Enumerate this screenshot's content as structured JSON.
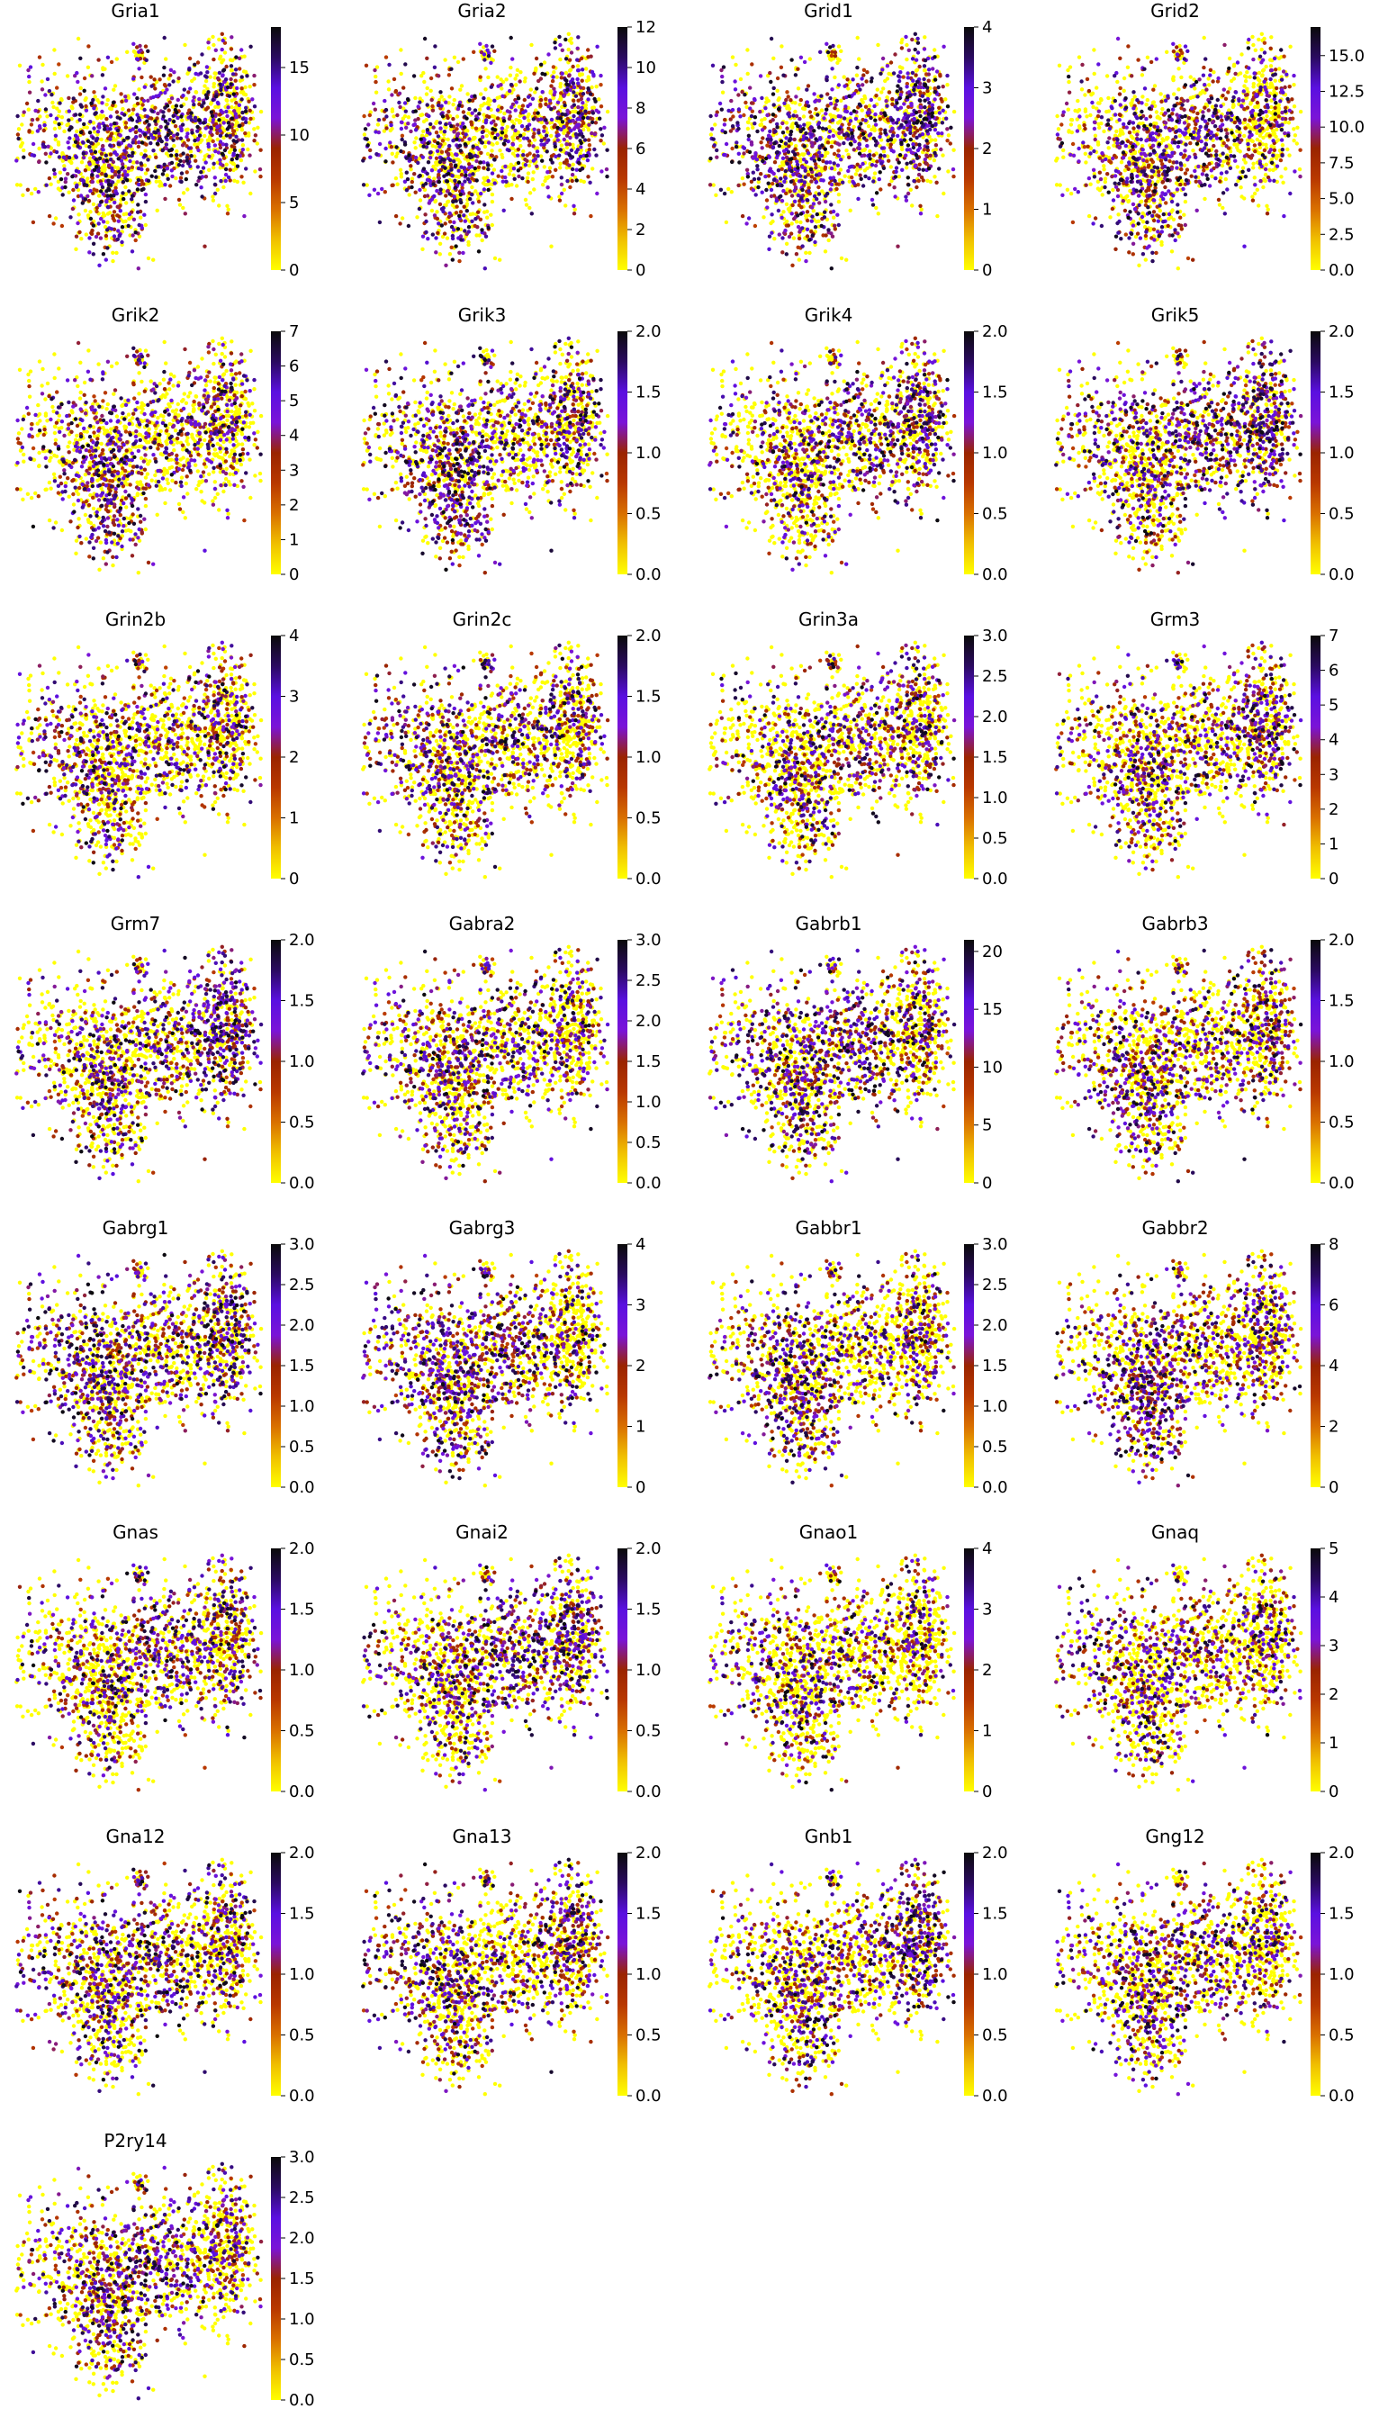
{
  "colors": {
    "cmap_stops": [
      "#ffff00",
      "#f0c000",
      "#d97000",
      "#b83800",
      "#9a2400",
      "#7a14d8",
      "#5a10e0",
      "#2a0a60",
      "#0a0a0a"
    ],
    "background": "#ffffff"
  },
  "chart_data": [
    {
      "type": "scatter",
      "title": "Gria1",
      "colorbar": {
        "range": [
          0,
          18
        ],
        "ticks": [
          "0",
          "5",
          "10",
          "15"
        ]
      }
    },
    {
      "type": "scatter",
      "title": "Gria2",
      "colorbar": {
        "range": [
          0,
          12
        ],
        "ticks": [
          "0",
          "2",
          "4",
          "6",
          "8",
          "10",
          "12"
        ]
      }
    },
    {
      "type": "scatter",
      "title": "Grid1",
      "colorbar": {
        "range": [
          0,
          4
        ],
        "ticks": [
          "0",
          "1",
          "2",
          "3",
          "4"
        ]
      }
    },
    {
      "type": "scatter",
      "title": "Grid2",
      "colorbar": {
        "range": [
          0,
          17
        ],
        "ticks": [
          "0.0",
          "2.5",
          "5.0",
          "7.5",
          "10.0",
          "12.5",
          "15.0"
        ]
      }
    },
    {
      "type": "scatter",
      "title": "Grik2",
      "colorbar": {
        "range": [
          0,
          7
        ],
        "ticks": [
          "0",
          "1",
          "2",
          "3",
          "4",
          "5",
          "6",
          "7"
        ]
      }
    },
    {
      "type": "scatter",
      "title": "Grik3",
      "colorbar": {
        "range": [
          0,
          2
        ],
        "ticks": [
          "0.0",
          "0.5",
          "1.0",
          "1.5",
          "2.0"
        ]
      }
    },
    {
      "type": "scatter",
      "title": "Grik4",
      "colorbar": {
        "range": [
          0,
          2
        ],
        "ticks": [
          "0.0",
          "0.5",
          "1.0",
          "1.5",
          "2.0"
        ]
      }
    },
    {
      "type": "scatter",
      "title": "Grik5",
      "colorbar": {
        "range": [
          0,
          2
        ],
        "ticks": [
          "0.0",
          "0.5",
          "1.0",
          "1.5",
          "2.0"
        ]
      }
    },
    {
      "type": "scatter",
      "title": "Grin2b",
      "colorbar": {
        "range": [
          0,
          4
        ],
        "ticks": [
          "0",
          "1",
          "2",
          "3",
          "4"
        ]
      }
    },
    {
      "type": "scatter",
      "title": "Grin2c",
      "colorbar": {
        "range": [
          0,
          2
        ],
        "ticks": [
          "0.0",
          "0.5",
          "1.0",
          "1.5",
          "2.0"
        ]
      }
    },
    {
      "type": "scatter",
      "title": "Grin3a",
      "colorbar": {
        "range": [
          0,
          3
        ],
        "ticks": [
          "0.0",
          "0.5",
          "1.0",
          "1.5",
          "2.0",
          "2.5",
          "3.0"
        ]
      }
    },
    {
      "type": "scatter",
      "title": "Grm3",
      "colorbar": {
        "range": [
          0,
          7
        ],
        "ticks": [
          "0",
          "1",
          "2",
          "3",
          "4",
          "5",
          "6",
          "7"
        ]
      }
    },
    {
      "type": "scatter",
      "title": "Grm7",
      "colorbar": {
        "range": [
          0,
          2
        ],
        "ticks": [
          "0.0",
          "0.5",
          "1.0",
          "1.5",
          "2.0"
        ]
      }
    },
    {
      "type": "scatter",
      "title": "Gabra2",
      "colorbar": {
        "range": [
          0,
          3
        ],
        "ticks": [
          "0.0",
          "0.5",
          "1.0",
          "1.5",
          "2.0",
          "2.5",
          "3.0"
        ]
      }
    },
    {
      "type": "scatter",
      "title": "Gabrb1",
      "colorbar": {
        "range": [
          0,
          21
        ],
        "ticks": [
          "0",
          "5",
          "10",
          "15",
          "20"
        ]
      }
    },
    {
      "type": "scatter",
      "title": "Gabrb3",
      "colorbar": {
        "range": [
          0,
          2
        ],
        "ticks": [
          "0.0",
          "0.5",
          "1.0",
          "1.5",
          "2.0"
        ]
      }
    },
    {
      "type": "scatter",
      "title": "Gabrg1",
      "colorbar": {
        "range": [
          0,
          3
        ],
        "ticks": [
          "0.0",
          "0.5",
          "1.0",
          "1.5",
          "2.0",
          "2.5",
          "3.0"
        ]
      }
    },
    {
      "type": "scatter",
      "title": "Gabrg3",
      "colorbar": {
        "range": [
          0,
          4
        ],
        "ticks": [
          "0",
          "1",
          "2",
          "3",
          "4"
        ]
      }
    },
    {
      "type": "scatter",
      "title": "Gabbr1",
      "colorbar": {
        "range": [
          0,
          3
        ],
        "ticks": [
          "0.0",
          "0.5",
          "1.0",
          "1.5",
          "2.0",
          "2.5",
          "3.0"
        ]
      }
    },
    {
      "type": "scatter",
      "title": "Gabbr2",
      "colorbar": {
        "range": [
          0,
          8
        ],
        "ticks": [
          "0",
          "2",
          "4",
          "6",
          "8"
        ]
      }
    },
    {
      "type": "scatter",
      "title": "Gnas",
      "colorbar": {
        "range": [
          0,
          2
        ],
        "ticks": [
          "0.0",
          "0.5",
          "1.0",
          "1.5",
          "2.0"
        ]
      }
    },
    {
      "type": "scatter",
      "title": "Gnai2",
      "colorbar": {
        "range": [
          0,
          2
        ],
        "ticks": [
          "0.0",
          "0.5",
          "1.0",
          "1.5",
          "2.0"
        ]
      }
    },
    {
      "type": "scatter",
      "title": "Gnao1",
      "colorbar": {
        "range": [
          0,
          4
        ],
        "ticks": [
          "0",
          "1",
          "2",
          "3",
          "4"
        ]
      }
    },
    {
      "type": "scatter",
      "title": "Gnaq",
      "colorbar": {
        "range": [
          0,
          5
        ],
        "ticks": [
          "0",
          "1",
          "2",
          "3",
          "4",
          "5"
        ]
      }
    },
    {
      "type": "scatter",
      "title": "Gna12",
      "colorbar": {
        "range": [
          0,
          2
        ],
        "ticks": [
          "0.0",
          "0.5",
          "1.0",
          "1.5",
          "2.0"
        ]
      }
    },
    {
      "type": "scatter",
      "title": "Gna13",
      "colorbar": {
        "range": [
          0,
          2
        ],
        "ticks": [
          "0.0",
          "0.5",
          "1.0",
          "1.5",
          "2.0"
        ]
      }
    },
    {
      "type": "scatter",
      "title": "Gnb1",
      "colorbar": {
        "range": [
          0,
          2
        ],
        "ticks": [
          "0.0",
          "0.5",
          "1.0",
          "1.5",
          "2.0"
        ]
      }
    },
    {
      "type": "scatter",
      "title": "Gng12",
      "colorbar": {
        "range": [
          0,
          2
        ],
        "ticks": [
          "0.0",
          "0.5",
          "1.0",
          "1.5",
          "2.0"
        ]
      }
    },
    {
      "type": "scatter",
      "title": "P2ry14",
      "colorbar": {
        "range": [
          0,
          3
        ],
        "ticks": [
          "0.0",
          "0.5",
          "1.0",
          "1.5",
          "2.0",
          "2.5",
          "3.0"
        ]
      }
    }
  ]
}
